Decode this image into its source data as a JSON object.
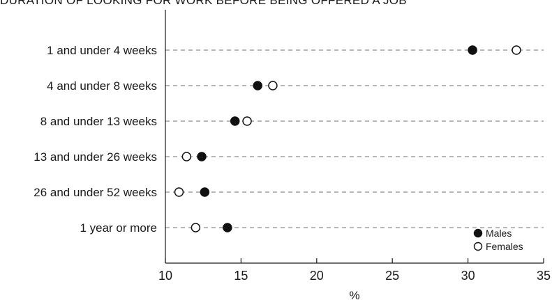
{
  "chart_data": {
    "type": "scatter",
    "title": "DURATION OF LOOKING FOR WORK BEFORE BEING OFFERED A JOB",
    "xlabel": "%",
    "ylabel": "",
    "xlim": [
      10,
      35
    ],
    "xticks": [
      10,
      15,
      20,
      25,
      30,
      35
    ],
    "categories": [
      "1 and under 4 weeks",
      "4 and under 8 weeks",
      "8 and under 13 weeks",
      "13 and under 26 weeks",
      "26 and under 52 weeks",
      "1 year or more"
    ],
    "series": [
      {
        "name": "Males",
        "marker": "filled",
        "color": "#111111",
        "values": [
          30.3,
          16.1,
          14.6,
          12.4,
          12.6,
          14.1
        ]
      },
      {
        "name": "Females",
        "marker": "open",
        "color": "#111111",
        "values": [
          33.2,
          17.1,
          15.4,
          11.4,
          10.9,
          12.0
        ]
      }
    ],
    "grid": "horizontal dashed",
    "legend": "bottom-right"
  }
}
